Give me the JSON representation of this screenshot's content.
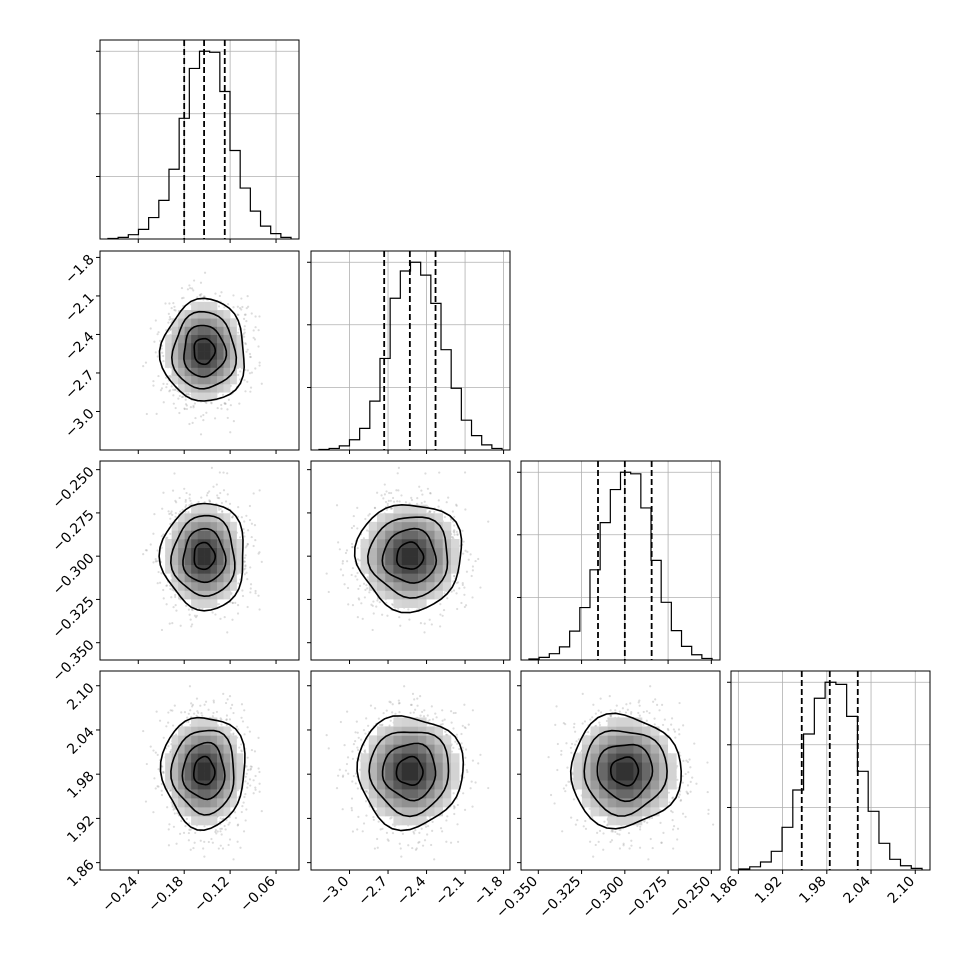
{
  "chart_data": {
    "type": "corner",
    "grid": true,
    "parameters": [
      {
        "index": 0,
        "range": [
          -0.29,
          -0.03
        ],
        "ticks": [
          -0.24,
          -0.18,
          -0.12,
          -0.06
        ],
        "tick_labels": [
          "−0.24",
          "−0.18",
          "−0.12",
          "−0.06"
        ],
        "quantiles": [
          -0.18,
          -0.154,
          -0.127
        ],
        "hist_counts": [
          1,
          3,
          8,
          18,
          40,
          72,
          130,
          225,
          318,
          350,
          348,
          275,
          165,
          95,
          52,
          24,
          10,
          3
        ]
      },
      {
        "index": 1,
        "range": [
          -3.3,
          -1.75
        ],
        "ticks": [
          -3.0,
          -2.7,
          -2.4,
          -2.1,
          -1.8
        ],
        "tick_labels": [
          "−3.0",
          "−2.7",
          "−2.4",
          "−2.1",
          "−1.8"
        ],
        "quantiles": [
          -2.73,
          -2.53,
          -2.33
        ],
        "hist_counts": [
          1,
          3,
          8,
          20,
          42,
          95,
          178,
          295,
          348,
          365,
          340,
          285,
          195,
          120,
          58,
          28,
          10,
          3
        ]
      },
      {
        "index": 2,
        "range": [
          -0.36,
          -0.245
        ],
        "ticks": [
          -0.35,
          -0.325,
          -0.3,
          -0.275,
          -0.25
        ],
        "tick_labels": [
          "−0.350",
          "−0.325",
          "−0.300",
          "−0.275",
          "−0.250"
        ],
        "quantiles": [
          -0.3155,
          -0.3,
          -0.2845
        ],
        "hist_counts": [
          2,
          5,
          12,
          25,
          55,
          100,
          172,
          262,
          325,
          358,
          355,
          290,
          190,
          110,
          56,
          26,
          10,
          3
        ]
      },
      {
        "index": 3,
        "range": [
          1.85,
          2.12
        ],
        "ticks": [
          1.86,
          1.92,
          1.98,
          2.04,
          2.1
        ],
        "tick_labels": [
          "1.86",
          "1.92",
          "1.98",
          "2.04",
          "2.10"
        ],
        "quantiles": [
          1.946,
          1.984,
          2.022
        ],
        "hist_counts": [
          2,
          6,
          15,
          35,
          80,
          150,
          255,
          322,
          352,
          348,
          288,
          185,
          110,
          50,
          20,
          8,
          3
        ]
      }
    ],
    "contour_levels_sigma": [
      0.5,
      1.0,
      1.5,
      2.0
    ],
    "scatter": {
      "n_points": 1400,
      "seed": 7
    }
  }
}
